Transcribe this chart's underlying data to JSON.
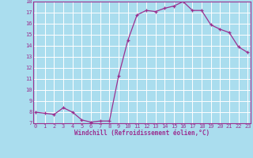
{
  "x": [
    0,
    1,
    2,
    3,
    4,
    5,
    6,
    7,
    8,
    9,
    10,
    11,
    12,
    13,
    14,
    15,
    16,
    17,
    18,
    19,
    20,
    21,
    22,
    23
  ],
  "y": [
    8.0,
    7.9,
    7.8,
    8.4,
    8.0,
    7.3,
    7.1,
    7.2,
    7.2,
    11.3,
    14.5,
    16.8,
    17.2,
    17.1,
    17.4,
    17.6,
    18.0,
    17.2,
    17.2,
    15.9,
    15.5,
    15.2,
    13.9,
    13.4
  ],
  "line_color": "#9b3090",
  "marker_color": "#9b3090",
  "bg_color": "#aaddee",
  "grid_color": "#ffffff",
  "xlabel": "Windchill (Refroidissement éolien,°C)",
  "xlabel_color": "#9b3090",
  "tick_color": "#9b3090",
  "spine_color": "#9b3090",
  "ylim": [
    7,
    18
  ],
  "yticks": [
    7,
    8,
    9,
    10,
    11,
    12,
    13,
    14,
    15,
    16,
    17,
    18
  ],
  "xticks": [
    0,
    1,
    2,
    3,
    4,
    5,
    6,
    7,
    8,
    9,
    10,
    11,
    12,
    13,
    14,
    15,
    16,
    17,
    18,
    19,
    20,
    21,
    22,
    23
  ],
  "xlim": [
    -0.3,
    23.3
  ]
}
